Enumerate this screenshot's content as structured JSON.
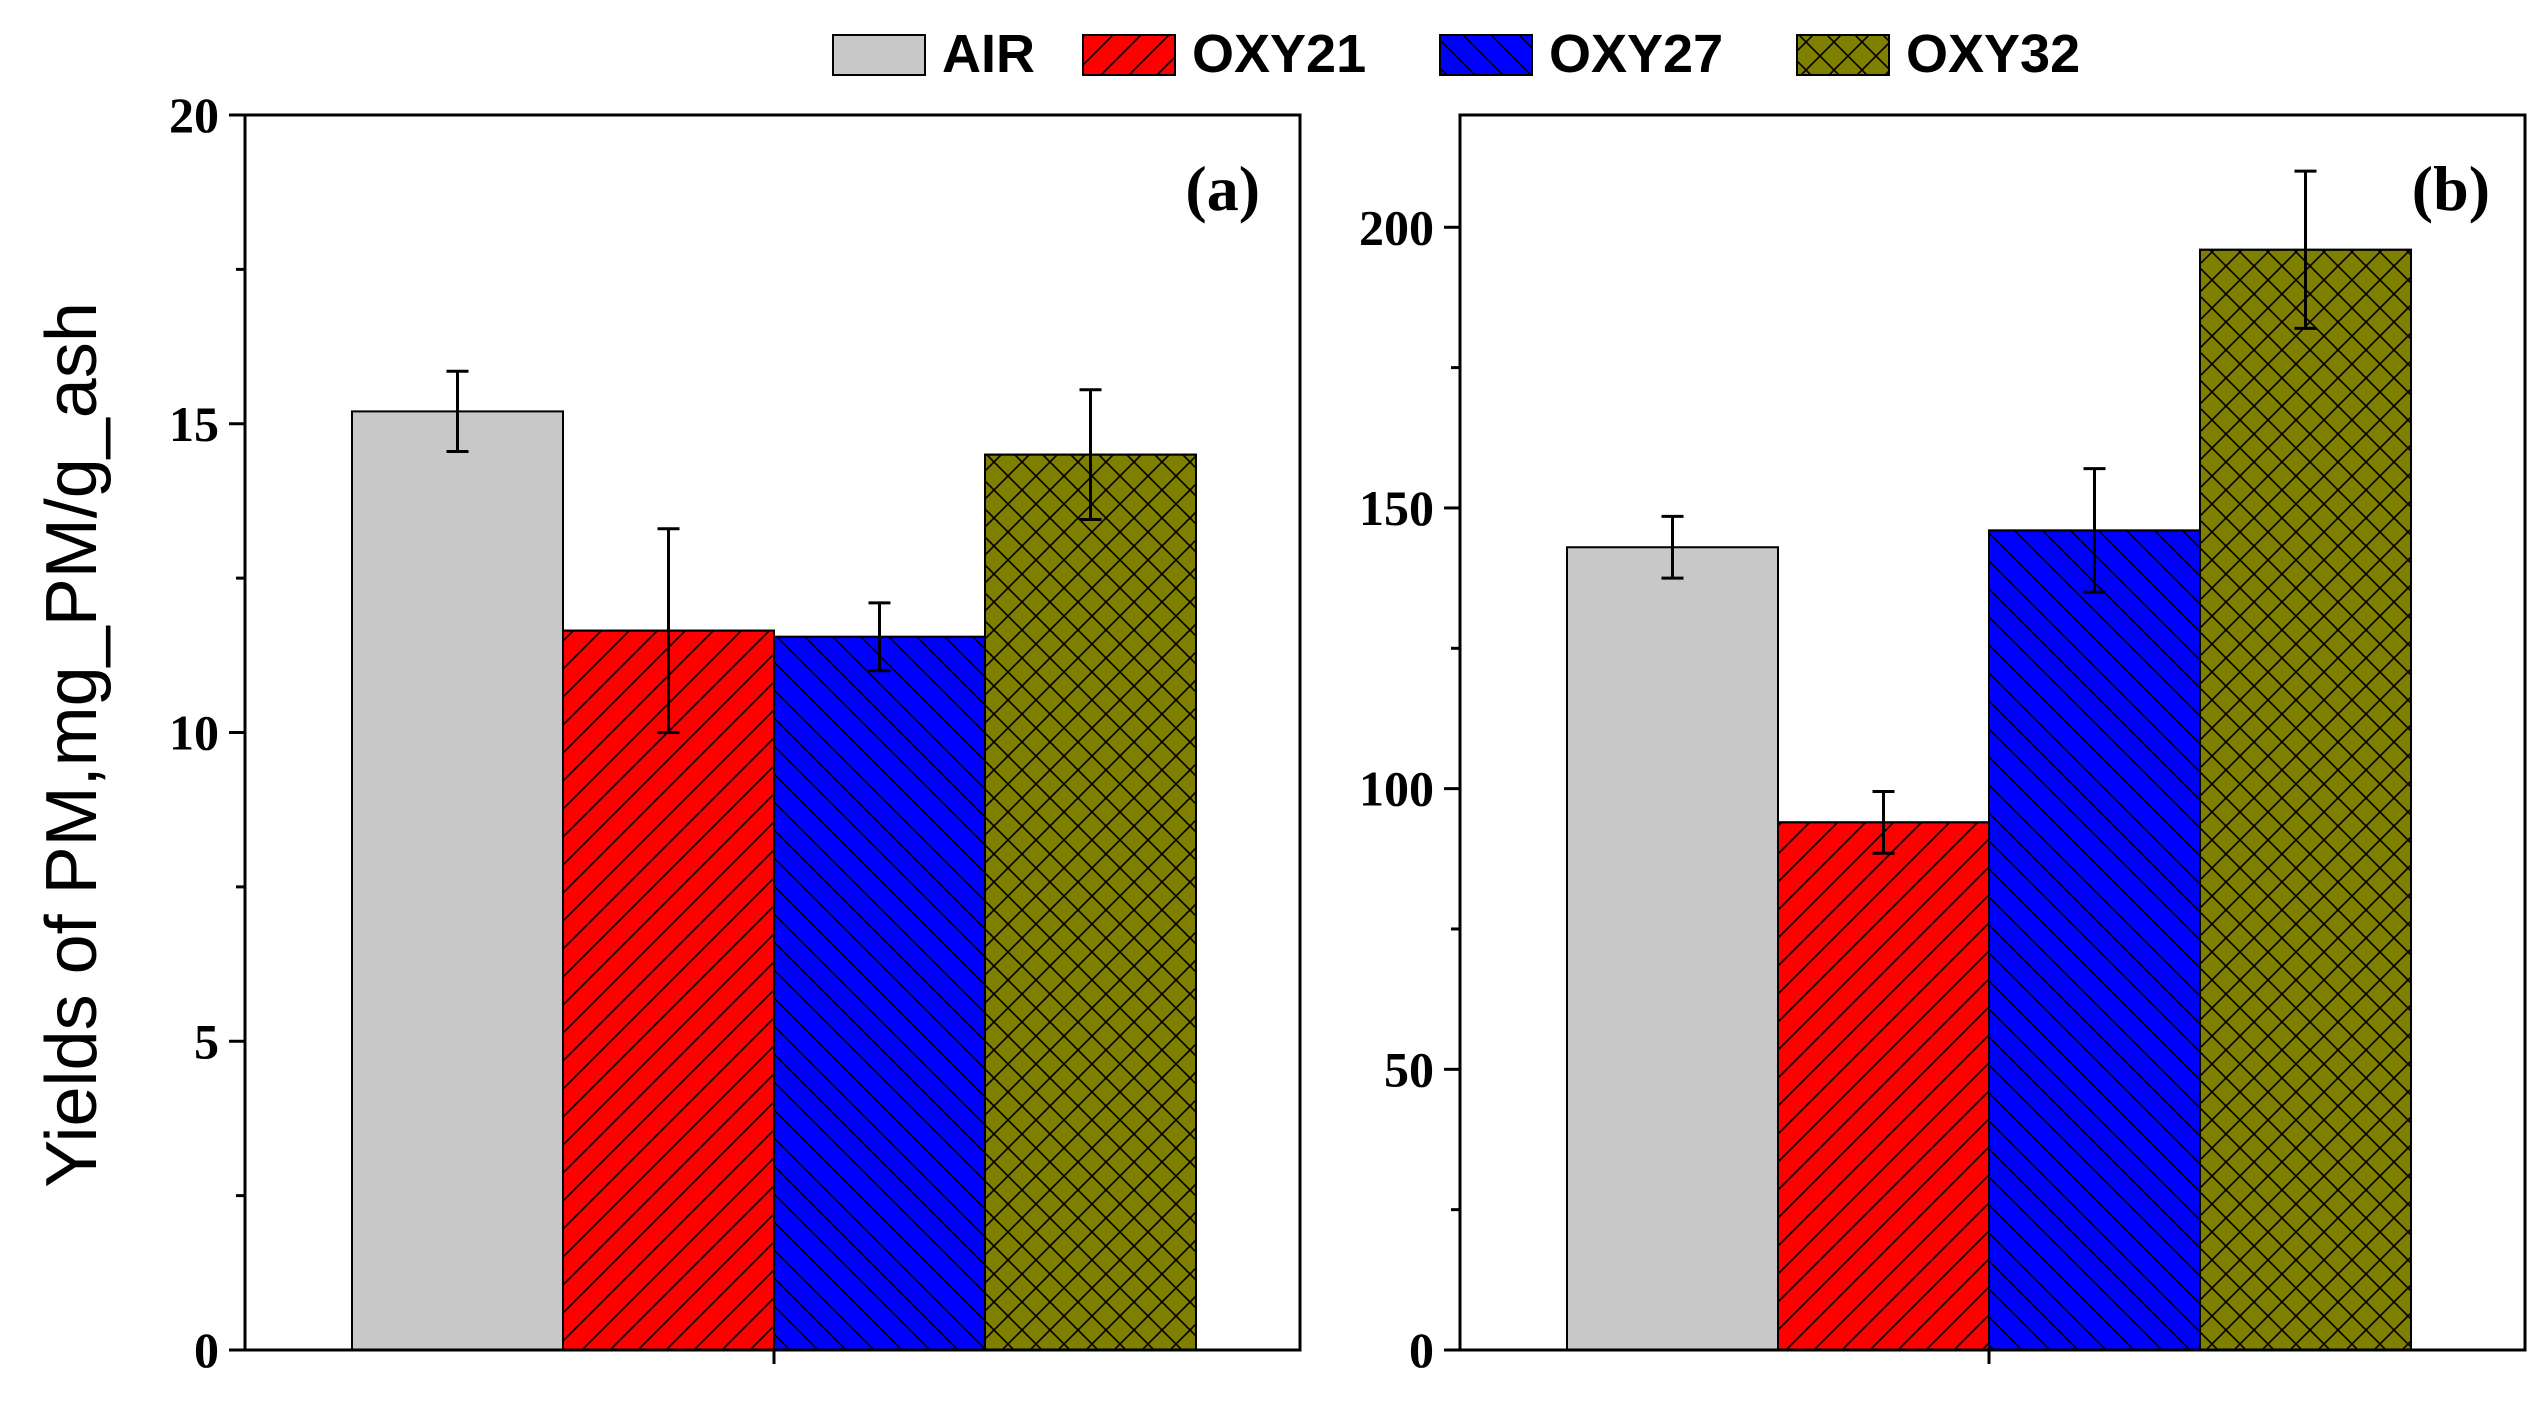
{
  "legend": [
    {
      "name": "AIR",
      "color": "#c8c8c8",
      "pattern": "none"
    },
    {
      "name": "OXY21",
      "color": "#ff0000",
      "pattern": "diag-up"
    },
    {
      "name": "OXY27",
      "color": "#0000ff",
      "pattern": "diag-down"
    },
    {
      "name": "OXY32",
      "color": "#7f7f00",
      "pattern": "cross"
    }
  ],
  "ylabel": "Yields of PM,mg_PM/g_ash",
  "chart_data": [
    {
      "type": "bar",
      "panel_label": "(a)",
      "series_names": [
        "AIR",
        "OXY21",
        "OXY27",
        "OXY32"
      ],
      "values": [
        15.2,
        11.65,
        11.55,
        14.5
      ],
      "errors": [
        0.65,
        1.65,
        0.55,
        1.05
      ],
      "ylim": [
        0,
        20
      ],
      "yticks": [
        0,
        5,
        10,
        15,
        20
      ],
      "ylabel": "Yields of PM,mg_PM/g_ash",
      "legend_position": "top"
    },
    {
      "type": "bar",
      "panel_label": "(b)",
      "series_names": [
        "AIR",
        "OXY21",
        "OXY27",
        "OXY32"
      ],
      "values": [
        143,
        94,
        146,
        196
      ],
      "errors": [
        5.5,
        5.5,
        11,
        14
      ],
      "ylim": [
        0,
        220
      ],
      "yticks": [
        0,
        50,
        100,
        150,
        200
      ],
      "ylabel": "",
      "legend_position": "top"
    }
  ]
}
